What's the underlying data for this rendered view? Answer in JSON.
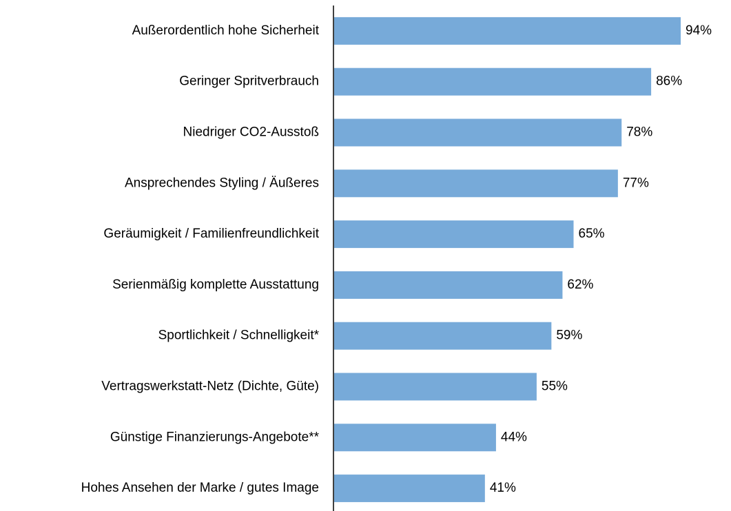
{
  "chart_data": {
    "type": "barh",
    "categories": [
      "Außerordentlich hohe Sicherheit",
      "Geringer Spritverbrauch",
      "Niedriger CO2-Ausstoß",
      "Ansprechendes Styling / Äußeres",
      "Geräumigkeit / Familienfreundlichkeit",
      "Serienmäßig komplette Ausstattung",
      "Sportlichkeit / Schnelligkeit*",
      "Vertragswerkstatt-Netz (Dichte, Güte)",
      "Günstige Finanzierungs-Angebote**",
      "Hohes Ansehen der Marke / gutes Image"
    ],
    "values": [
      94,
      86,
      78,
      77,
      65,
      62,
      59,
      55,
      44,
      41
    ],
    "value_labels": [
      "94%",
      "86%",
      "78%",
      "77%",
      "65%",
      "62%",
      "59%",
      "55%",
      "44%",
      "41%"
    ],
    "color": "#77aad9"
  }
}
